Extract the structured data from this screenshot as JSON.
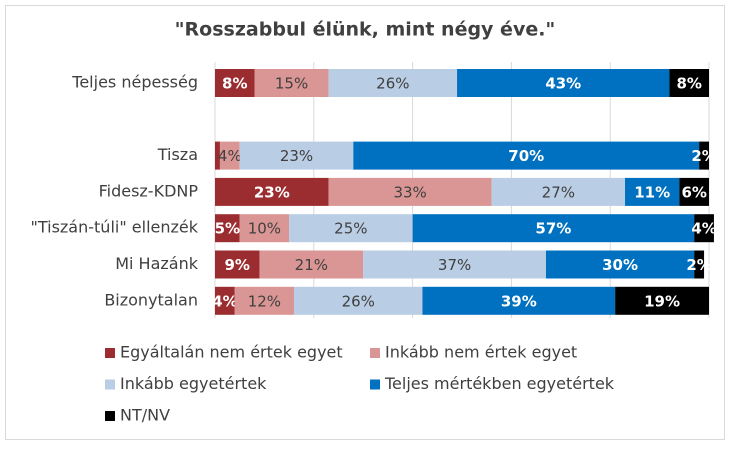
{
  "chart_data": {
    "type": "stacked-bar",
    "orientation": "horizontal",
    "title": "\"Rosszabbul élünk, mint négy éve.\"",
    "categories": [
      "Teljes népesség",
      null,
      "Tisza",
      "Fidesz-KDNP",
      "\"Tiszán-túli\" ellenzék",
      "Mi Hazánk",
      "Bizonytalan"
    ],
    "series": [
      {
        "name": "Egyáltalán nem értek egyet",
        "color": "#9b2d30",
        "values": [
          8,
          null,
          1,
          23,
          5,
          9,
          4
        ],
        "value_labels": [
          "8%",
          null,
          null,
          "23%",
          "5%",
          "9%",
          "4%"
        ]
      },
      {
        "name": "Inkább nem értek egyet",
        "color": "#d99694",
        "values": [
          15,
          null,
          4,
          33,
          10,
          21,
          12
        ],
        "value_labels": [
          "15%",
          null,
          "4%",
          "33%",
          "10%",
          "21%",
          "12%"
        ]
      },
      {
        "name": "Inkább egyetértek",
        "color": "#b9cde5",
        "values": [
          26,
          null,
          23,
          27,
          25,
          37,
          26
        ],
        "value_labels": [
          "26%",
          null,
          "23%",
          "27%",
          "25%",
          "37%",
          "26%"
        ]
      },
      {
        "name": "Teljes mértékben egyetértek",
        "color": "#0070c0",
        "values": [
          43,
          null,
          70,
          11,
          57,
          30,
          39
        ],
        "value_labels": [
          "43%",
          null,
          "70%",
          "11%",
          "57%",
          "30%",
          "39%"
        ]
      },
      {
        "name": "NT/NV",
        "color": "#000000",
        "values": [
          8,
          null,
          2,
          6,
          4,
          2,
          19
        ],
        "value_labels": [
          "8%",
          null,
          "2%",
          "6%",
          "4%",
          "2%",
          "19%"
        ]
      }
    ],
    "xlim": [
      0,
      100
    ],
    "xticks": [
      0,
      20,
      40,
      60,
      80,
      100
    ],
    "grid": true
  }
}
